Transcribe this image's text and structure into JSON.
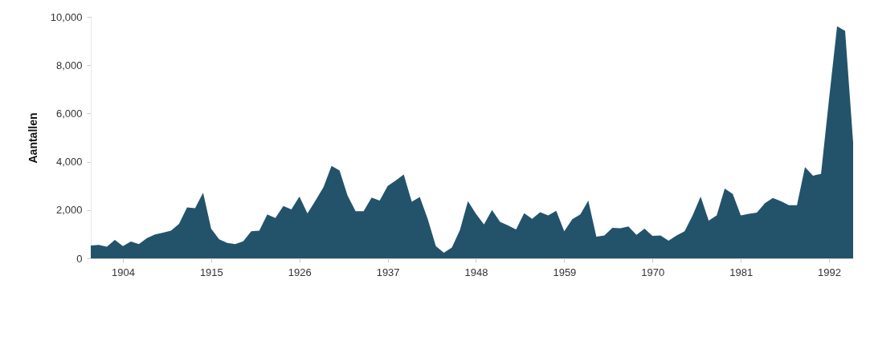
{
  "chart_data": {
    "type": "area",
    "ylabel": "Aantallen",
    "color": "#23536b",
    "x": [
      1900,
      1901,
      1902,
      1903,
      1904,
      1905,
      1906,
      1907,
      1908,
      1909,
      1910,
      1911,
      1912,
      1913,
      1914,
      1915,
      1916,
      1917,
      1918,
      1919,
      1920,
      1921,
      1922,
      1923,
      1924,
      1925,
      1926,
      1927,
      1928,
      1929,
      1930,
      1931,
      1932,
      1933,
      1934,
      1935,
      1936,
      1937,
      1938,
      1939,
      1940,
      1941,
      1942,
      1943,
      1944,
      1945,
      1946,
      1947,
      1948,
      1949,
      1950,
      1951,
      1952,
      1953,
      1954,
      1955,
      1956,
      1957,
      1958,
      1959,
      1960,
      1961,
      1962,
      1963,
      1964,
      1965,
      1966,
      1967,
      1968,
      1969,
      1970,
      1971,
      1972,
      1973,
      1974,
      1975,
      1976,
      1977,
      1978,
      1979,
      1980,
      1981,
      1982,
      1983,
      1984,
      1985,
      1986,
      1987,
      1988,
      1989,
      1990,
      1991,
      1992,
      1993,
      1994,
      1995
    ],
    "values": [
      530,
      560,
      480,
      760,
      510,
      700,
      590,
      840,
      990,
      1060,
      1150,
      1430,
      2110,
      2080,
      2720,
      1230,
      790,
      640,
      590,
      710,
      1120,
      1150,
      1820,
      1670,
      2170,
      2030,
      2560,
      1860,
      2390,
      2950,
      3830,
      3640,
      2600,
      1950,
      1950,
      2520,
      2390,
      3000,
      3220,
      3470,
      2340,
      2540,
      1620,
      510,
      230,
      450,
      1170,
      2370,
      1840,
      1400,
      2000,
      1510,
      1360,
      1200,
      1870,
      1640,
      1910,
      1780,
      1970,
      1120,
      1620,
      1820,
      2390,
      900,
      950,
      1260,
      1250,
      1320,
      970,
      1230,
      930,
      950,
      730,
      950,
      1120,
      1780,
      2560,
      1560,
      1780,
      2890,
      2670,
      1780,
      1840,
      1890,
      2280,
      2500,
      2370,
      2200,
      2200,
      3780,
      3420,
      3500,
      6600,
      9610,
      9420,
      4800
    ],
    "xlim": [
      1900,
      1995
    ],
    "xticks": [
      1904,
      1915,
      1926,
      1937,
      1948,
      1959,
      1970,
      1981,
      1992
    ],
    "ylim": [
      0,
      10000
    ],
    "yticks": [
      0,
      {
        "value": 2000,
        "label": "2,000"
      },
      {
        "value": 4000,
        "label": "4,000"
      },
      {
        "value": 6000,
        "label": "6,000"
      },
      {
        "value": 8000,
        "label": "8,000"
      },
      {
        "value": 10000,
        "label": "10,000"
      }
    ],
    "grid": false
  }
}
